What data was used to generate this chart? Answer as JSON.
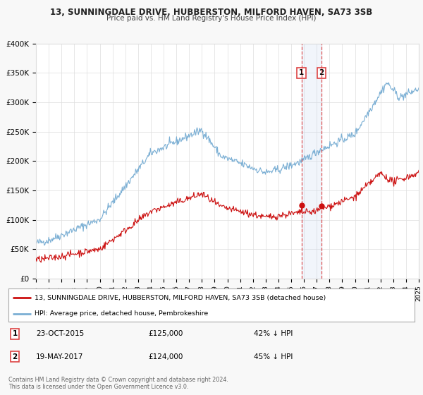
{
  "title": "13, SUNNINGDALE DRIVE, HUBBERSTON, MILFORD HAVEN, SA73 3SB",
  "subtitle": "Price paid vs. HM Land Registry's House Price Index (HPI)",
  "ylim": [
    0,
    400000
  ],
  "yticks": [
    0,
    50000,
    100000,
    150000,
    200000,
    250000,
    300000,
    350000,
    400000
  ],
  "ytick_labels": [
    "£0",
    "£50K",
    "£100K",
    "£150K",
    "£200K",
    "£250K",
    "£300K",
    "£350K",
    "£400K"
  ],
  "hpi_color": "#7bafd4",
  "price_color": "#cc1111",
  "sale1_date": 2015.81,
  "sale2_date": 2017.38,
  "sale1_price": 125000,
  "sale2_price": 124000,
  "legend_red": "13, SUNNINGDALE DRIVE, HUBBERSTON, MILFORD HAVEN, SA73 3SB (detached house)",
  "legend_blue": "HPI: Average price, detached house, Pembrokeshire",
  "note1_num": "1",
  "note1_date": "23-OCT-2015",
  "note1_price": "£125,000",
  "note1_pct": "42% ↓ HPI",
  "note2_num": "2",
  "note2_date": "19-MAY-2017",
  "note2_price": "£124,000",
  "note2_pct": "45% ↓ HPI",
  "copyright": "Contains HM Land Registry data © Crown copyright and database right 2024.\nThis data is licensed under the Open Government Licence v3.0.",
  "background_color": "#f8f8f8",
  "plot_bg_color": "#ffffff",
  "grid_color": "#dddddd",
  "span_color": "#c8d8f0",
  "vline_color": "#dd4444"
}
